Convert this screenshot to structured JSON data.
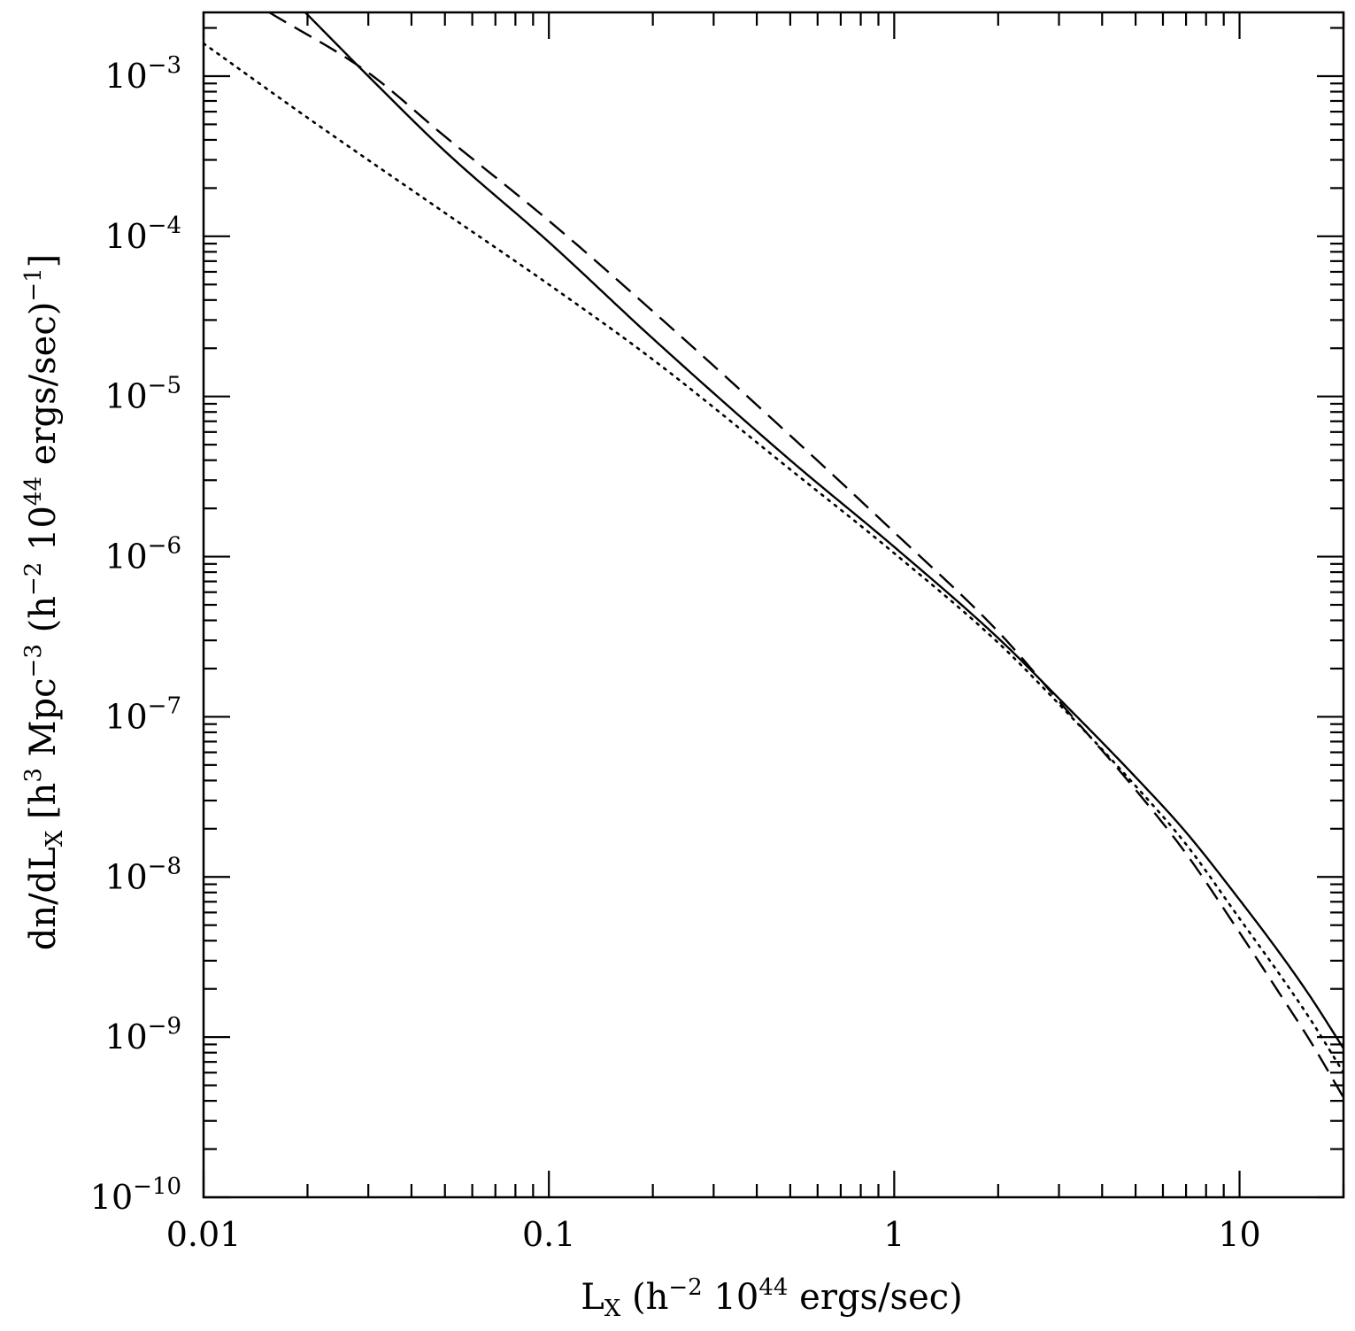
{
  "chart_data": {
    "type": "line",
    "xscale": "log",
    "yscale": "log",
    "xlim": [
      0.01,
      20
    ],
    "ylim": [
      1e-10,
      0.0025
    ],
    "grid": false,
    "legend": "none",
    "x_ticks": [
      {
        "value": 0.01,
        "label": "0.01"
      },
      {
        "value": 0.1,
        "label": "0.1"
      },
      {
        "value": 1,
        "label": "1"
      },
      {
        "value": 10,
        "label": "10"
      }
    ],
    "y_ticks": [
      {
        "value": 0.001,
        "base": "10",
        "exp": "−3"
      },
      {
        "value": 0.0001,
        "base": "10",
        "exp": "−4"
      },
      {
        "value": 1e-05,
        "base": "10",
        "exp": "−5"
      },
      {
        "value": 1e-06,
        "base": "10",
        "exp": "−6"
      },
      {
        "value": 1e-07,
        "base": "10",
        "exp": "−7"
      },
      {
        "value": 1e-08,
        "base": "10",
        "exp": "−8"
      },
      {
        "value": 1e-09,
        "base": "10",
        "exp": "−9"
      },
      {
        "value": 1e-10,
        "base": "10",
        "exp": "−10"
      }
    ],
    "xlabel": {
      "main": "L",
      "sub": "X",
      "t1": " (h",
      "s1": "−2",
      "t2": " 10",
      "s2": "44",
      "t3": " ergs/sec)"
    },
    "ylabel": {
      "t1": "dn/dL",
      "sub": "X",
      "t2": " [h",
      "s1": "3",
      "t3": " Mpc",
      "s2": "−3",
      "t4": " (h",
      "s3": "−2",
      "t5": " 10",
      "s4": "44",
      "t6": " ergs/sec)",
      "s5": "−1",
      "t7": "]"
    },
    "series": [
      {
        "style": "solid",
        "x": [
          0.0197,
          0.03,
          0.05,
          0.1,
          0.2,
          0.5,
          1,
          2,
          3,
          5,
          7,
          10,
          13,
          16,
          20
        ],
        "y": [
          0.0025,
          0.001,
          0.00034,
          9.2e-05,
          2.3e-05,
          4e-06,
          1.15e-06,
          3.1e-07,
          1.3e-07,
          4.2e-08,
          1.9e-08,
          7.2e-09,
          3.4e-09,
          1.8e-09,
          8.5e-10
        ]
      },
      {
        "style": "dashed",
        "x": [
          0.0155,
          0.03,
          0.05,
          0.1,
          0.2,
          0.5,
          1,
          2,
          3,
          5,
          7,
          10,
          13,
          16,
          20
        ],
        "y": [
          0.0025,
          0.00105,
          0.00042,
          0.000125,
          3.4e-05,
          5.7e-06,
          1.42e-06,
          3.4e-07,
          1.25e-07,
          3.5e-08,
          1.4e-08,
          4.5e-09,
          1.9e-09,
          9.5e-10,
          4.2e-10
        ]
      },
      {
        "style": "dotted",
        "x": [
          0.01,
          0.02,
          0.05,
          0.1,
          0.2,
          0.5,
          1,
          2,
          3,
          5,
          7,
          10,
          13,
          16,
          20
        ],
        "y": [
          0.0016,
          0.00055,
          0.00014,
          5e-05,
          1.7e-05,
          3.5e-06,
          1.05e-06,
          2.9e-07,
          1.2e-07,
          3.7e-08,
          1.6e-08,
          5.5e-09,
          2.5e-09,
          1.3e-09,
          6e-10
        ]
      }
    ]
  }
}
